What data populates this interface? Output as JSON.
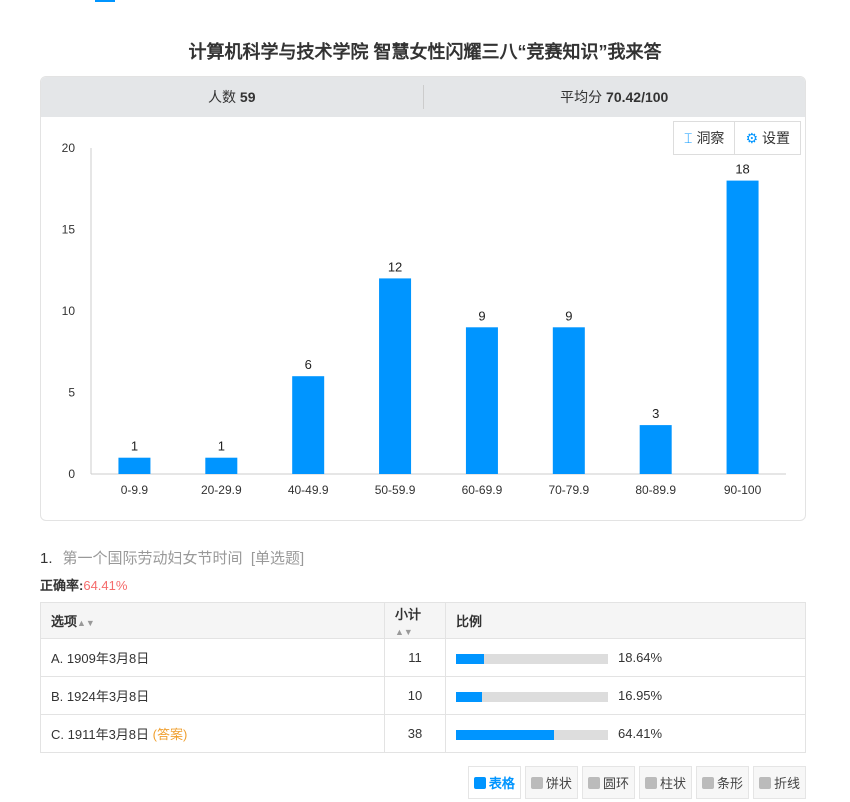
{
  "title": "计算机科学与技术学院   智慧女性闪耀三八“竞赛知识”我来答",
  "stats": {
    "count_label": "人数",
    "count": "59",
    "avg_label": "平均分",
    "avg": "70.42/100"
  },
  "tools": {
    "insight": "洞察",
    "settings": "设置"
  },
  "chart_data": {
    "type": "bar",
    "categories": [
      "0-9.9",
      "20-29.9",
      "40-49.9",
      "50-59.9",
      "60-69.9",
      "70-79.9",
      "80-89.9",
      "90-100"
    ],
    "values": [
      1,
      1,
      6,
      12,
      9,
      9,
      3,
      18
    ],
    "ylim": [
      0,
      20
    ],
    "yticks": [
      0,
      5,
      10,
      15,
      20
    ],
    "color": "#0095ff",
    "grid": false
  },
  "question": {
    "number": "1.",
    "text": "第一个国际劳动妇女节时间",
    "type": "[单选题]",
    "accuracy_label": "正确率:",
    "accuracy": "64.41%"
  },
  "table": {
    "headers": [
      "选项",
      "小计",
      "比例"
    ],
    "rows": [
      {
        "option": "A. 1909年3月8日",
        "count": "11",
        "pct": "18.64%",
        "frac": 0.1864,
        "answer": ""
      },
      {
        "option": "B. 1924年3月8日",
        "count": "10",
        "pct": "16.95%",
        "frac": 0.1695,
        "answer": ""
      },
      {
        "option": "C. 1911年3月8日",
        "count": "38",
        "pct": "64.41%",
        "frac": 0.6441,
        "answer": "(答案)"
      }
    ]
  },
  "views": [
    "表格",
    "饼状",
    "圆环",
    "柱状",
    "条形",
    "折线"
  ]
}
